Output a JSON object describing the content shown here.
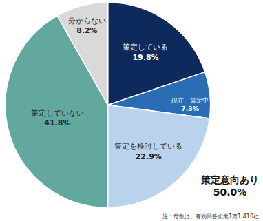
{
  "chart_data": {
    "type": "pie",
    "labels": [
      "策定している",
      "現在、策定中",
      "策定を検討している",
      "策定していない",
      "分からない"
    ],
    "values": [
      19.8,
      7.3,
      22.9,
      41.8,
      8.2
    ],
    "value_labels": [
      "19.8%",
      "7.3%",
      "22.9%",
      "41.8%",
      "8.2%"
    ],
    "colors": [
      "#0e2a5c",
      "#2b6db5",
      "#b9d3ec",
      "#62a89f",
      "#d9d9d9"
    ],
    "data_labels": true,
    "group": {
      "label": "策定意向あり",
      "value": 50.0,
      "value_label": "50.0%"
    },
    "note": "注：母数は、有効回答企業1万1,410社"
  }
}
